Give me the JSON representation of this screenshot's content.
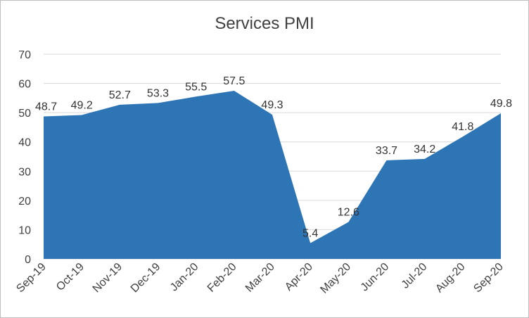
{
  "chart_data": {
    "type": "area",
    "title": "Services PMI",
    "xlabel": "",
    "ylabel": "",
    "categories": [
      "Sep-19",
      "Oct-19",
      "Nov-19",
      "Dec-19",
      "Jan-20",
      "Feb-20",
      "Mar-20",
      "Apr-20",
      "May-20",
      "Jun-20",
      "Jul-20",
      "Aug-20",
      "Sep-20"
    ],
    "values": [
      48.7,
      49.2,
      52.7,
      53.3,
      55.5,
      57.5,
      49.3,
      5.4,
      12.6,
      33.7,
      34.2,
      41.8,
      49.8
    ],
    "data_labels": [
      "48.7",
      "49.2",
      "52.7",
      "53.3",
      "55.5",
      "57.5",
      "49.3",
      "5.4",
      "12.6",
      "33.7",
      "34.2",
      "41.8",
      "49.8"
    ],
    "ylim": [
      0,
      70
    ],
    "yticks": [
      "0",
      "10",
      "20",
      "30",
      "40",
      "50",
      "60",
      "70"
    ],
    "grid": true,
    "legend": "none",
    "colors": {
      "fill": "#2E75B6",
      "grid": "#d9d9d9",
      "axis_text": "#404040"
    }
  }
}
